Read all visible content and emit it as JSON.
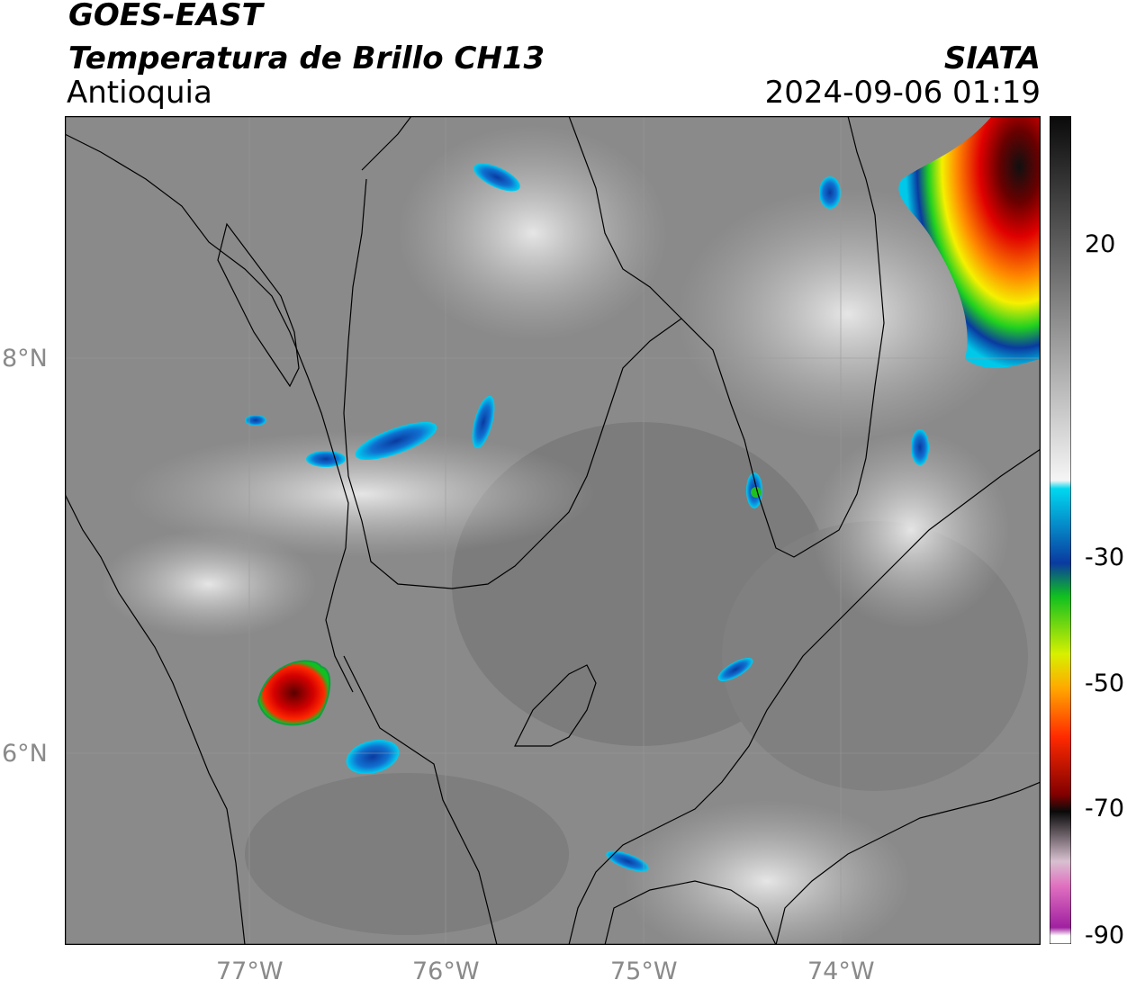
{
  "header": {
    "satellite": "GOES-EAST",
    "product": "Temperatura de Brillo CH13",
    "region": "Antioquia",
    "agency": "SIATA",
    "timestamp": "2024-09-06 01:19"
  },
  "map": {
    "lon_ticks": [
      {
        "value": -77,
        "label": "77°W"
      },
      {
        "value": -76,
        "label": "76°W"
      },
      {
        "value": -75,
        "label": "75°W"
      },
      {
        "value": -74,
        "label": "74°W"
      }
    ],
    "lat_ticks": [
      {
        "value": 8,
        "label": "8°N"
      },
      {
        "value": 6,
        "label": "6°N"
      }
    ]
  },
  "colorbar": {
    "ticks": [
      {
        "value": 20,
        "label": "20"
      },
      {
        "value": -30,
        "label": "-30"
      },
      {
        "value": -50,
        "label": "-50"
      },
      {
        "value": -70,
        "label": "-70"
      },
      {
        "value": -90,
        "label": "-90"
      }
    ],
    "colors": {
      "warm_top": "#0a0a0a",
      "white": "#f5f5f5",
      "cyan": "#00d8f0",
      "blue": "#0a3aa0",
      "green": "#10d020",
      "yellow": "#f5f000",
      "orange": "#ff8a00",
      "red": "#e00000",
      "dark_red": "#2a0000",
      "pink": "#e070c0",
      "purple": "#a020a0"
    }
  }
}
